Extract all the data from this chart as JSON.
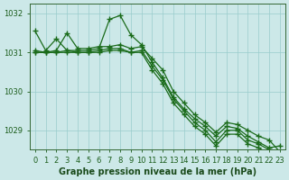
{
  "xlabel": "Graphe pression niveau de la mer (hPa)",
  "x": [
    0,
    1,
    2,
    3,
    4,
    5,
    6,
    7,
    8,
    9,
    10,
    11,
    12,
    13,
    14,
    15,
    16,
    17,
    18,
    19,
    20,
    21,
    22,
    23
  ],
  "series": [
    [
      1031.55,
      1031.05,
      1031.35,
      1031.05,
      1031.05,
      1031.05,
      1031.1,
      1031.85,
      1031.95,
      1031.45,
      1031.2,
      1030.75,
      1030.35,
      1029.85,
      1029.55,
      1029.3,
      1029.1,
      1028.85,
      1029.1,
      1029.05,
      1028.85,
      1028.7,
      1028.55,
      1028.6
    ],
    [
      1031.05,
      1031.0,
      1031.05,
      1031.5,
      1031.1,
      1031.1,
      1031.15,
      1031.15,
      1031.2,
      1031.1,
      1031.15,
      1030.85,
      1030.55,
      1030.0,
      1029.7,
      1029.4,
      1029.2,
      1028.95,
      1029.2,
      1029.15,
      1029.0,
      1028.85,
      1028.75,
      1028.45
    ],
    [
      1031.0,
      1031.0,
      1031.0,
      1031.05,
      1031.0,
      1031.0,
      1031.05,
      1031.1,
      1031.1,
      1031.0,
      1031.05,
      1030.65,
      1030.3,
      1029.8,
      1029.5,
      1029.2,
      1029.0,
      1028.7,
      1029.0,
      1029.0,
      1028.75,
      1028.65,
      1028.5,
      1028.35
    ],
    [
      1031.0,
      1031.0,
      1031.0,
      1031.0,
      1031.0,
      1031.0,
      1031.0,
      1031.05,
      1031.05,
      1031.0,
      1031.0,
      1030.55,
      1030.2,
      1029.7,
      1029.4,
      1029.1,
      1028.9,
      1028.6,
      1028.9,
      1028.9,
      1028.65,
      1028.55,
      1028.4,
      1028.25
    ]
  ],
  "line_color": "#1a6b1a",
  "marker": "+",
  "markersize": 4,
  "linewidth": 0.9,
  "ylim": [
    1028.5,
    1032.25
  ],
  "yticks": [
    1029,
    1030,
    1031,
    1032
  ],
  "xticks": [
    0,
    1,
    2,
    3,
    4,
    5,
    6,
    7,
    8,
    9,
    10,
    11,
    12,
    13,
    14,
    15,
    16,
    17,
    18,
    19,
    20,
    21,
    22,
    23
  ],
  "bg_color": "#cce8e8",
  "grid_color": "#99cccc",
  "axis_color": "#336633",
  "tick_color": "#1a5c1a",
  "label_color": "#1a4a1a",
  "label_fontsize": 7,
  "tick_fontsize": 6,
  "bold_label": true
}
